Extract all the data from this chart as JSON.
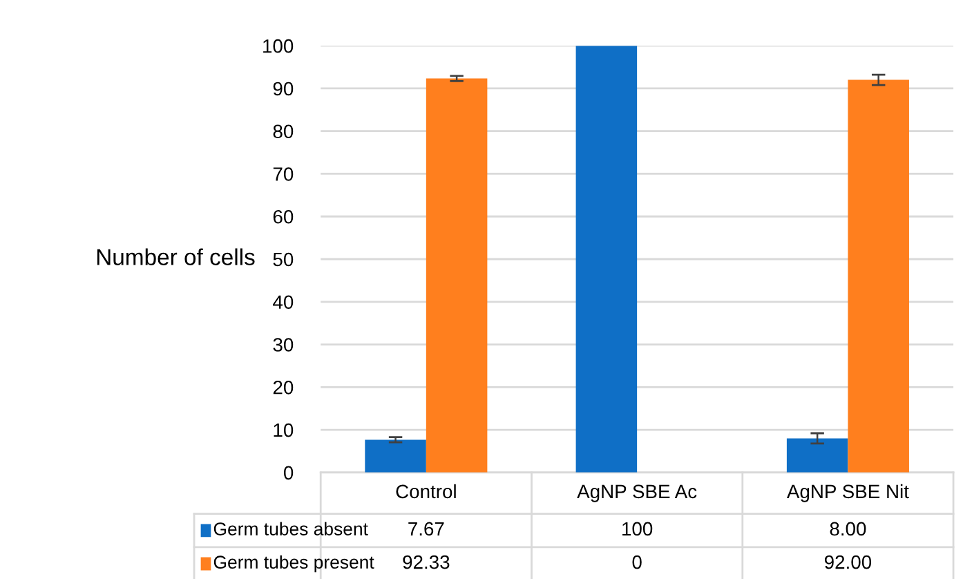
{
  "chart_data": {
    "type": "bar",
    "ylabel": "Number of cells",
    "categories": [
      "Control",
      "AgNP SBE Ac",
      "AgNP SBE Nit"
    ],
    "series": [
      {
        "name": "Germ tubes absent",
        "color": "#0f6fc6",
        "values": [
          7.67,
          100,
          8.0
        ],
        "errors": [
          0.6,
          null,
          1.2
        ],
        "value_labels": [
          "7.67",
          "100",
          "8.00"
        ]
      },
      {
        "name": "Germ tubes present",
        "color": "#ff7f1e",
        "values": [
          92.33,
          0,
          92.0
        ],
        "errors": [
          0.6,
          null,
          1.2
        ],
        "value_labels": [
          "92.33",
          "0",
          "92.00"
        ]
      }
    ],
    "ylim": [
      0,
      100
    ],
    "yticks": [
      0,
      10,
      20,
      30,
      40,
      50,
      60,
      70,
      80,
      90,
      100
    ],
    "grid": "y",
    "legend": "bottom"
  }
}
